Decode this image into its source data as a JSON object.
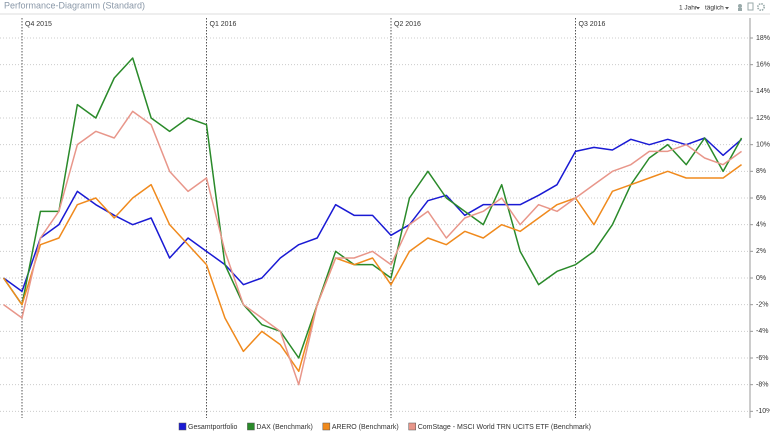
{
  "header": {
    "title": "Performance-Diagramm (Standard)",
    "controls": [
      "1 Jahr",
      "täglich"
    ]
  },
  "chart_data": {
    "type": "line",
    "categories": [
      null,
      "Q4 2015",
      null,
      null,
      null,
      null,
      null,
      null,
      null,
      null,
      null,
      "Q1 2016",
      null,
      null,
      null,
      null,
      null,
      null,
      null,
      null,
      null,
      "Q2 2016",
      null,
      null,
      null,
      null,
      null,
      null,
      null,
      null,
      null,
      "Q3 2016",
      null,
      null,
      null,
      null,
      null,
      null,
      null,
      null,
      null
    ],
    "series": [
      {
        "name": "Gesamtportfolio",
        "color": "#1a1ad4",
        "values": [
          0,
          -1,
          3,
          4,
          6.5,
          5.5,
          4.7,
          4,
          4.5,
          1.5,
          3,
          2,
          1,
          -0.5,
          0,
          1.5,
          2.5,
          3,
          5.5,
          4.7,
          4.7,
          3.2,
          4,
          5.8,
          6.2,
          4.7,
          5.5,
          5.5,
          5.5,
          6.2,
          7,
          9.5,
          9.8,
          9.6,
          10.4,
          10,
          10.4,
          10,
          10.5,
          9.2,
          10.4
        ]
      },
      {
        "name": "DAX (Benchmark)",
        "color": "#2a8a2a",
        "values": [
          0,
          -2,
          5,
          5,
          13,
          12,
          15,
          16.5,
          12,
          11,
          12,
          11.5,
          1,
          -2,
          -3.5,
          -4,
          -6,
          -2,
          2,
          1,
          1,
          0,
          6,
          8,
          6,
          5,
          4,
          7,
          2,
          -0.5,
          0.5,
          1,
          2,
          4,
          7,
          9,
          10,
          8.5,
          10.5,
          8,
          10.5
        ]
      },
      {
        "name": "ARERO (Benchmark)",
        "color": "#f08a1d",
        "values": [
          0,
          -2,
          2.5,
          3,
          5.5,
          6,
          4.5,
          6,
          7,
          4,
          2.5,
          1,
          -3,
          -5.5,
          -4,
          -5,
          -7,
          -2,
          1.5,
          1,
          1.5,
          -0.5,
          2,
          3,
          2.5,
          3.5,
          3,
          4,
          3.5,
          4.5,
          5.5,
          6,
          4,
          6.5,
          7,
          7.5,
          8,
          7.5,
          7.5,
          7.5,
          8.5
        ]
      },
      {
        "name": "ComStage - MSCI World TRN UCITS ETF (Benchmark)",
        "color": "#e8968a",
        "values": [
          -2,
          -3,
          3,
          5,
          10,
          11,
          10.5,
          12.5,
          11.5,
          8,
          6.5,
          7.5,
          2,
          -2,
          -3,
          -4,
          -8,
          -2,
          1.5,
          1.5,
          2,
          1,
          4,
          5,
          3,
          4.5,
          5,
          6,
          4,
          5.5,
          5,
          6,
          7,
          8,
          8.5,
          9.5,
          9.5,
          10,
          9,
          8.5,
          9.5
        ]
      }
    ],
    "ylim": [
      -10.5,
      19.5
    ],
    "yticks": [
      {
        "value": -10,
        "label": "-10%"
      },
      {
        "value": -8,
        "label": "-8%"
      },
      {
        "value": -6,
        "label": "-6%"
      },
      {
        "value": -4,
        "label": "-4%"
      },
      {
        "value": -2,
        "label": "-2%"
      },
      {
        "value": 0,
        "label": "0%"
      },
      {
        "value": 2,
        "label": "2%"
      },
      {
        "value": 4,
        "label": "4%"
      },
      {
        "value": 6,
        "label": "6%"
      },
      {
        "value": 8,
        "label": "8%"
      },
      {
        "value": 10,
        "label": "10%"
      },
      {
        "value": 12,
        "label": "12%"
      },
      {
        "value": 14,
        "label": "14%"
      },
      {
        "value": 16,
        "label": "16%"
      },
      {
        "value": 18,
        "label": "18%"
      }
    ],
    "grid": true
  }
}
